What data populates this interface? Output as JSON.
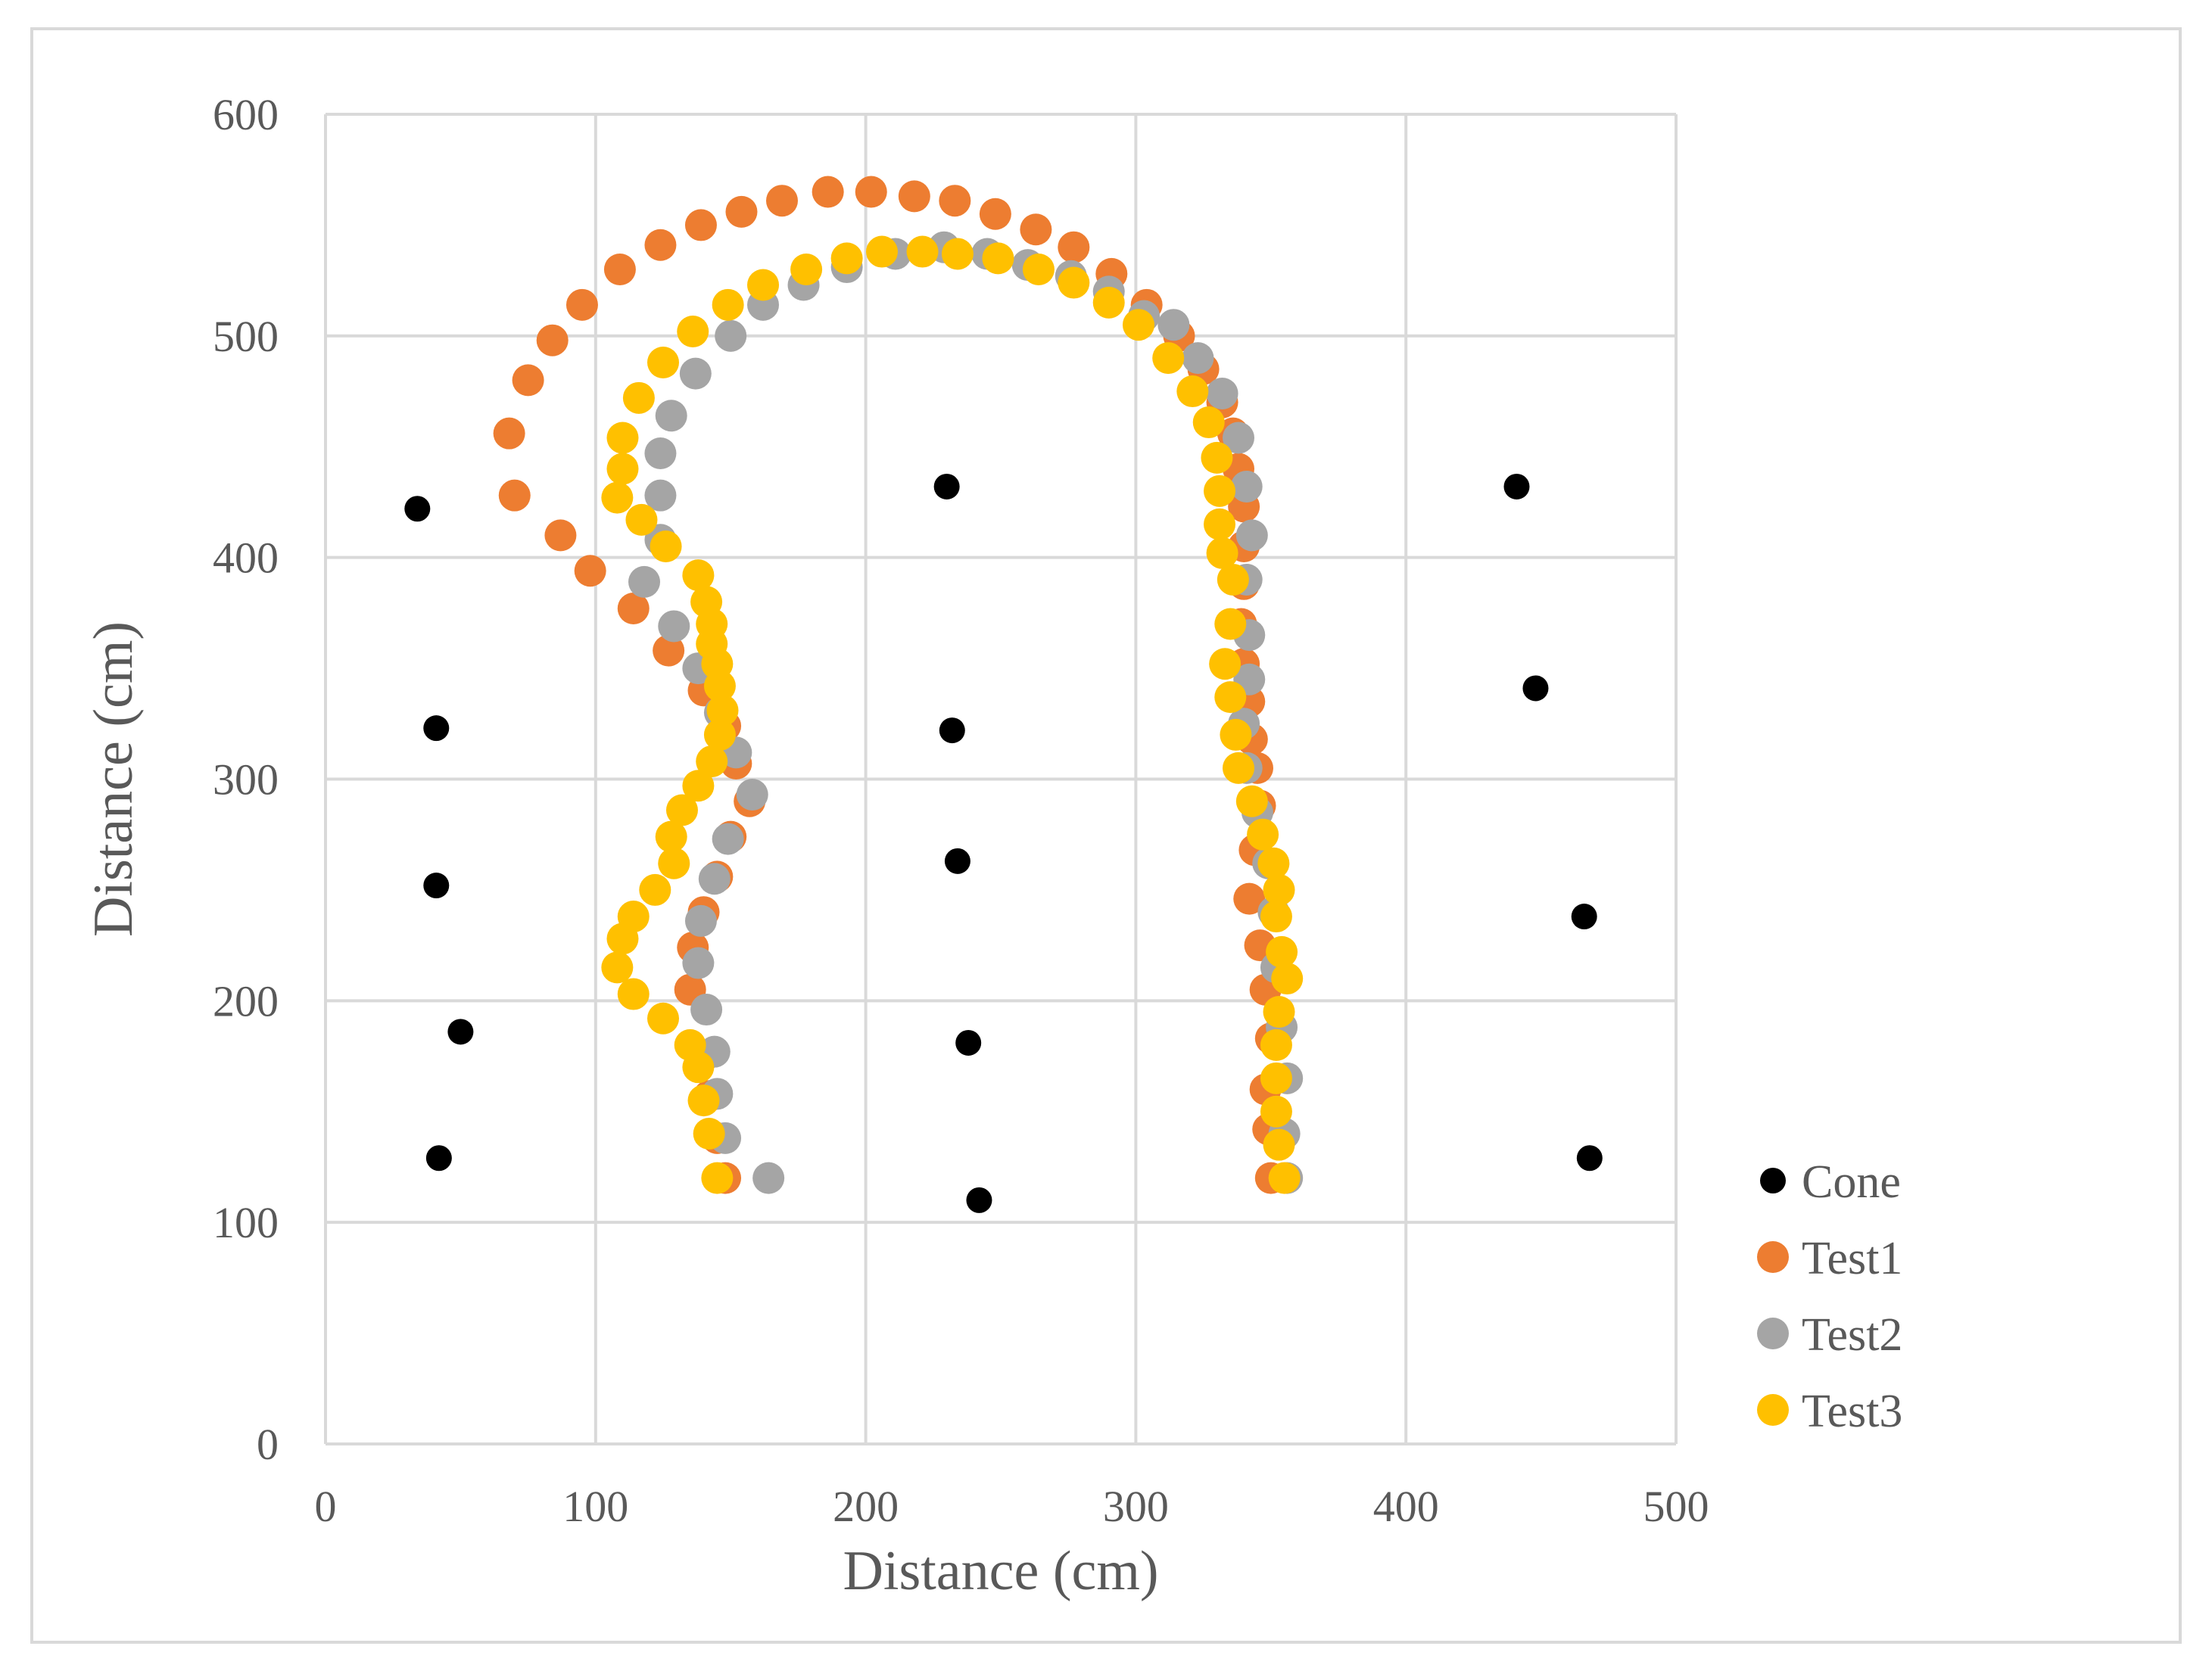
{
  "chart_data": {
    "type": "scatter",
    "title": "",
    "xlabel": "Distance (cm)",
    "ylabel": "Distance (cm)",
    "xlim": [
      0,
      500
    ],
    "ylim": [
      0,
      600
    ],
    "xticks": [
      0,
      100,
      200,
      300,
      400,
      500
    ],
    "yticks": [
      0,
      100,
      200,
      300,
      400,
      500,
      600
    ],
    "xtick_labels": [
      "0",
      "100",
      "200",
      "300",
      "400",
      "500"
    ],
    "ytick_labels": [
      "0",
      "100",
      "200",
      "300",
      "400",
      "500",
      "600"
    ],
    "grid": true,
    "legend_position": "right",
    "series": [
      {
        "name": "Cone",
        "color": "#000000",
        "marker": "small",
        "points": [
          [
            34,
            422
          ],
          [
            41,
            323
          ],
          [
            41,
            252
          ],
          [
            50,
            186
          ],
          [
            42,
            129
          ],
          [
            230,
            432
          ],
          [
            232,
            322
          ],
          [
            234,
            263
          ],
          [
            238,
            181
          ],
          [
            242,
            110
          ],
          [
            441,
            432
          ],
          [
            448,
            341
          ],
          [
            466,
            238
          ],
          [
            468,
            129
          ]
        ]
      },
      {
        "name": "Test1",
        "color": "#ed7d31",
        "marker": "large",
        "points": [
          [
            148,
            120
          ],
          [
            145,
            138
          ],
          [
            142,
            157
          ],
          [
            140,
            175
          ],
          [
            135,
            205
          ],
          [
            136,
            224
          ],
          [
            140,
            240
          ],
          [
            145,
            256
          ],
          [
            150,
            274
          ],
          [
            157,
            290
          ],
          [
            152,
            307
          ],
          [
            148,
            324
          ],
          [
            140,
            340
          ],
          [
            127,
            358
          ],
          [
            114,
            377
          ],
          [
            98,
            394
          ],
          [
            87,
            410
          ],
          [
            70,
            428
          ],
          [
            68,
            456
          ],
          [
            75,
            480
          ],
          [
            84,
            498
          ],
          [
            95,
            514
          ],
          [
            109,
            530
          ],
          [
            124,
            541
          ],
          [
            139,
            550
          ],
          [
            154,
            556
          ],
          [
            169,
            561
          ],
          [
            186,
            565
          ],
          [
            202,
            565
          ],
          [
            218,
            563
          ],
          [
            233,
            561
          ],
          [
            248,
            555
          ],
          [
            263,
            548
          ],
          [
            277,
            540
          ],
          [
            291,
            528
          ],
          [
            304,
            514
          ],
          [
            316,
            500
          ],
          [
            325,
            485
          ],
          [
            332,
            470
          ],
          [
            336,
            456
          ],
          [
            338,
            440
          ],
          [
            340,
            423
          ],
          [
            340,
            405
          ],
          [
            340,
            388
          ],
          [
            339,
            370
          ],
          [
            340,
            352
          ],
          [
            342,
            335
          ],
          [
            343,
            318
          ],
          [
            345,
            305
          ],
          [
            346,
            288
          ],
          [
            344,
            268
          ],
          [
            342,
            246
          ],
          [
            346,
            225
          ],
          [
            348,
            205
          ],
          [
            350,
            183
          ],
          [
            348,
            160
          ],
          [
            349,
            142
          ],
          [
            350,
            120
          ]
        ]
      },
      {
        "name": "Test2",
        "color": "#a5a5a5",
        "marker": "large",
        "points": [
          [
            164,
            120
          ],
          [
            148,
            138
          ],
          [
            145,
            158
          ],
          [
            144,
            177
          ],
          [
            141,
            196
          ],
          [
            138,
            217
          ],
          [
            139,
            236
          ],
          [
            144,
            255
          ],
          [
            149,
            273
          ],
          [
            158,
            293
          ],
          [
            152,
            312
          ],
          [
            146,
            330
          ],
          [
            138,
            350
          ],
          [
            129,
            369
          ],
          [
            118,
            389
          ],
          [
            124,
            408
          ],
          [
            124,
            428
          ],
          [
            124,
            447
          ],
          [
            128,
            464
          ],
          [
            137,
            483
          ],
          [
            150,
            500
          ],
          [
            162,
            514
          ],
          [
            177,
            523
          ],
          [
            193,
            531
          ],
          [
            211,
            537
          ],
          [
            229,
            540
          ],
          [
            245,
            537
          ],
          [
            260,
            532
          ],
          [
            276,
            527
          ],
          [
            290,
            520
          ],
          [
            303,
            509
          ],
          [
            314,
            505
          ],
          [
            323,
            490
          ],
          [
            332,
            474
          ],
          [
            338,
            454
          ],
          [
            341,
            432
          ],
          [
            343,
            410
          ],
          [
            341,
            390
          ],
          [
            342,
            365
          ],
          [
            342,
            345
          ],
          [
            340,
            325
          ],
          [
            341,
            305
          ],
          [
            345,
            285
          ],
          [
            349,
            262
          ],
          [
            351,
            240
          ],
          [
            352,
            215
          ],
          [
            354,
            188
          ],
          [
            356,
            165
          ],
          [
            355,
            140
          ],
          [
            356,
            120
          ]
        ]
      },
      {
        "name": "Test3",
        "color": "#ffc000",
        "marker": "large",
        "points": [
          [
            145,
            120
          ],
          [
            142,
            140
          ],
          [
            140,
            155
          ],
          [
            138,
            170
          ],
          [
            135,
            180
          ],
          [
            125,
            192
          ],
          [
            114,
            203
          ],
          [
            108,
            215
          ],
          [
            110,
            228
          ],
          [
            114,
            238
          ],
          [
            122,
            250
          ],
          [
            129,
            262
          ],
          [
            128,
            274
          ],
          [
            132,
            286
          ],
          [
            138,
            297
          ],
          [
            143,
            308
          ],
          [
            146,
            320
          ],
          [
            147,
            331
          ],
          [
            146,
            342
          ],
          [
            145,
            352
          ],
          [
            143,
            361
          ],
          [
            143,
            370
          ],
          [
            141,
            380
          ],
          [
            138,
            392
          ],
          [
            126,
            405
          ],
          [
            117,
            417
          ],
          [
            108,
            427
          ],
          [
            110,
            440
          ],
          [
            110,
            454
          ],
          [
            116,
            472
          ],
          [
            125,
            488
          ],
          [
            136,
            502
          ],
          [
            149,
            514
          ],
          [
            162,
            523
          ],
          [
            178,
            530
          ],
          [
            193,
            535
          ],
          [
            206,
            538
          ],
          [
            221,
            538
          ],
          [
            234,
            537
          ],
          [
            249,
            535
          ],
          [
            264,
            530
          ],
          [
            277,
            524
          ],
          [
            290,
            515
          ],
          [
            301,
            505
          ],
          [
            312,
            490
          ],
          [
            321,
            475
          ],
          [
            327,
            461
          ],
          [
            330,
            445
          ],
          [
            331,
            430
          ],
          [
            331,
            415
          ],
          [
            332,
            402
          ],
          [
            336,
            390
          ],
          [
            335,
            370
          ],
          [
            333,
            352
          ],
          [
            335,
            337
          ],
          [
            337,
            320
          ],
          [
            338,
            305
          ],
          [
            343,
            290
          ],
          [
            347,
            275
          ],
          [
            351,
            262
          ],
          [
            353,
            250
          ],
          [
            352,
            238
          ],
          [
            354,
            222
          ],
          [
            356,
            210
          ],
          [
            353,
            195
          ],
          [
            352,
            180
          ],
          [
            352,
            165
          ],
          [
            352,
            150
          ],
          [
            353,
            135
          ],
          [
            355,
            120
          ]
        ]
      }
    ]
  }
}
